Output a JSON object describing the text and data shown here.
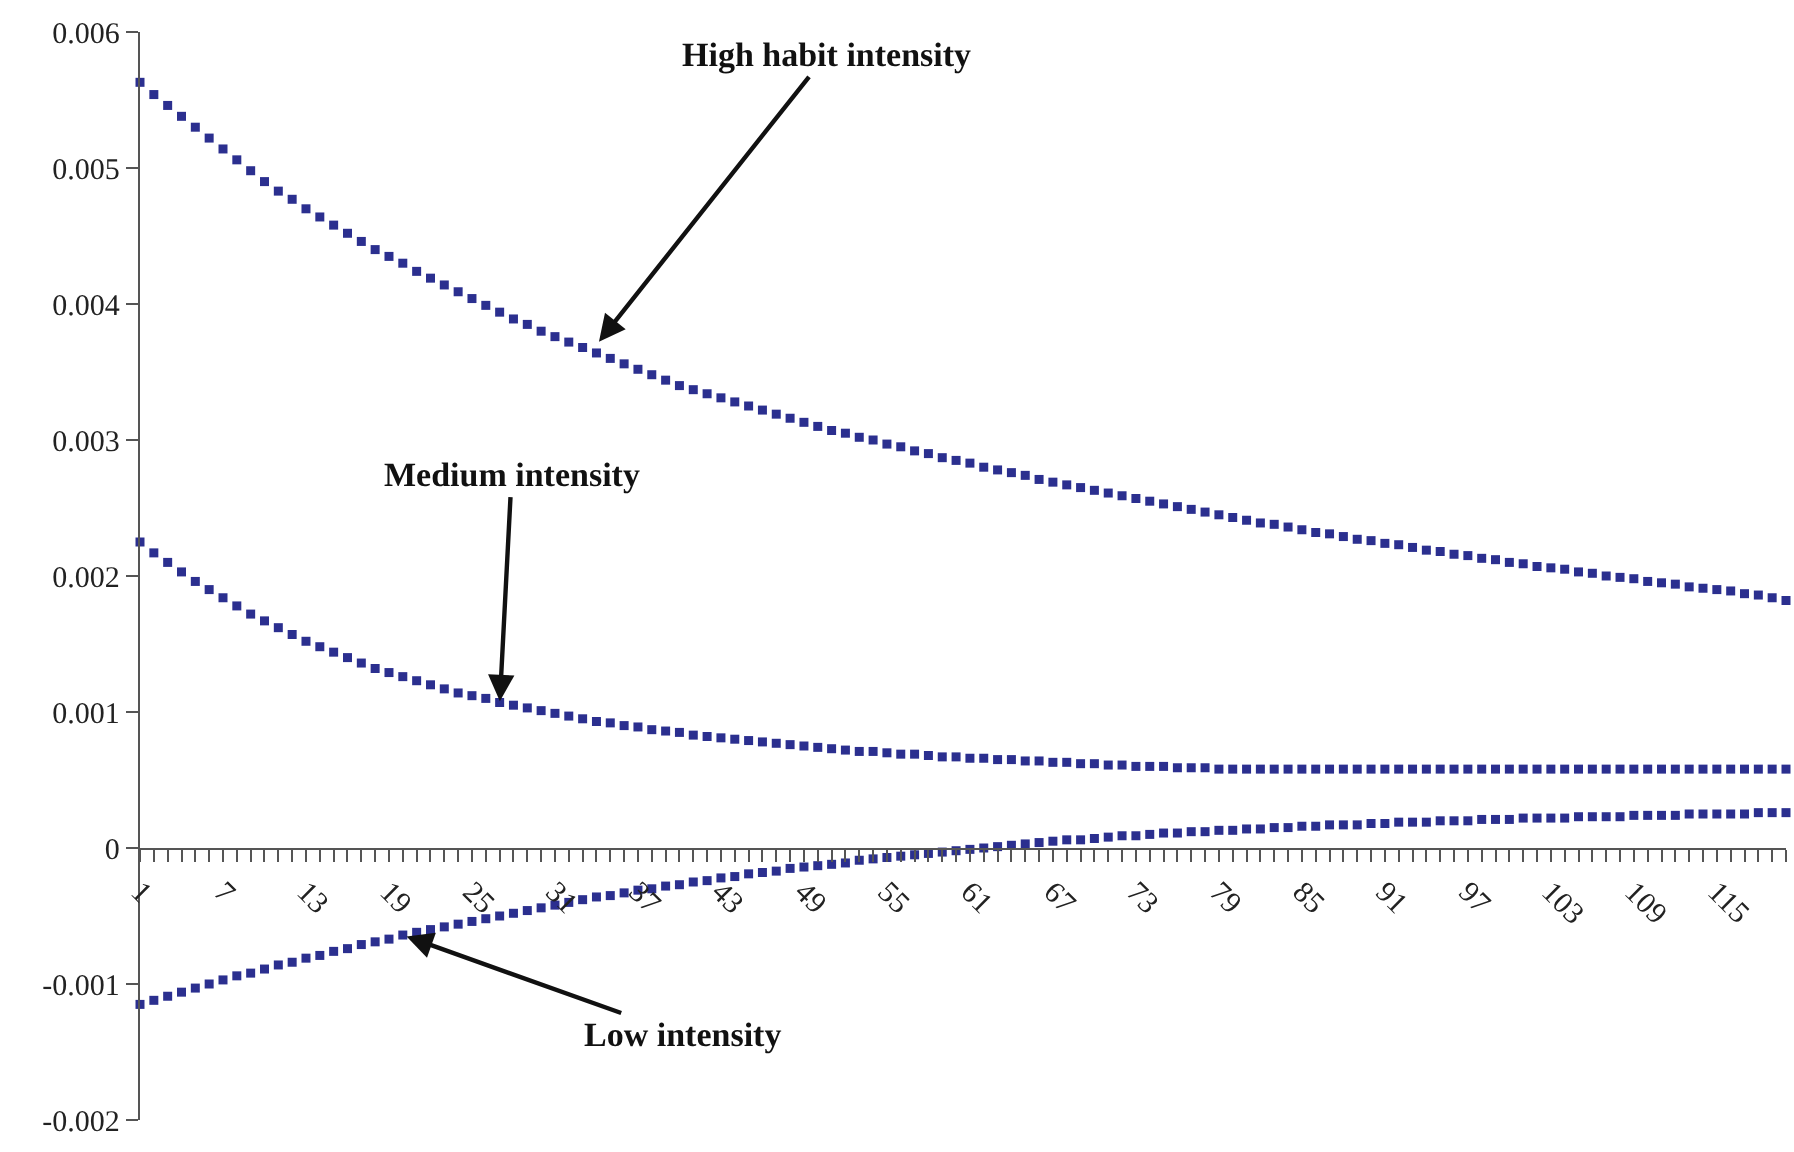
{
  "chart_data": {
    "type": "scatter",
    "marker": "square",
    "x": [
      1,
      2,
      3,
      4,
      5,
      6,
      7,
      8,
      9,
      10,
      11,
      12,
      13,
      14,
      15,
      16,
      17,
      18,
      19,
      20,
      21,
      22,
      23,
      24,
      25,
      26,
      27,
      28,
      29,
      30,
      31,
      32,
      33,
      34,
      35,
      36,
      37,
      38,
      39,
      40,
      41,
      42,
      43,
      44,
      45,
      46,
      47,
      48,
      49,
      50,
      51,
      52,
      53,
      54,
      55,
      56,
      57,
      58,
      59,
      60,
      61,
      62,
      63,
      64,
      65,
      66,
      67,
      68,
      69,
      70,
      71,
      72,
      73,
      74,
      75,
      76,
      77,
      78,
      79,
      80,
      81,
      82,
      83,
      84,
      85,
      86,
      87,
      88,
      89,
      90,
      91,
      92,
      93,
      94,
      95,
      96,
      97,
      98,
      99,
      100,
      101,
      102,
      103,
      104,
      105,
      106,
      107,
      108,
      109,
      110,
      111,
      112,
      113,
      114,
      115,
      116,
      117,
      118,
      119,
      120
    ],
    "xlim": [
      1,
      120
    ],
    "xticks": [
      1,
      7,
      13,
      19,
      25,
      31,
      37,
      43,
      49,
      55,
      61,
      67,
      73,
      79,
      85,
      91,
      97,
      103,
      109,
      115
    ],
    "ylim": [
      -0.002,
      0.006
    ],
    "yticks": [
      -0.002,
      -0.001,
      0,
      0.001,
      0.002,
      0.003,
      0.004,
      0.005,
      0.006
    ],
    "series": [
      {
        "color": "#2b2f8f",
        "values": [
          0.00563,
          0.00554,
          0.00546,
          0.00538,
          0.0053,
          0.00522,
          0.00514,
          0.00506,
          0.00498,
          0.0049,
          0.00483,
          0.00477,
          0.0047,
          0.00464,
          0.00458,
          0.00452,
          0.00446,
          0.0044,
          0.00435,
          0.0043,
          0.00424,
          0.00419,
          0.00414,
          0.00409,
          0.00404,
          0.00399,
          0.00394,
          0.00389,
          0.00385,
          0.0038,
          0.00376,
          0.00372,
          0.00368,
          0.00364,
          0.0036,
          0.00356,
          0.00352,
          0.00348,
          0.00344,
          0.0034,
          0.00337,
          0.00334,
          0.00331,
          0.00328,
          0.00325,
          0.00322,
          0.00319,
          0.00316,
          0.00313,
          0.0031,
          0.00307,
          0.00305,
          0.00302,
          0.003,
          0.00297,
          0.00295,
          0.00292,
          0.0029,
          0.00287,
          0.00285,
          0.00283,
          0.0028,
          0.00278,
          0.00276,
          0.00274,
          0.00271,
          0.00269,
          0.00267,
          0.00265,
          0.00263,
          0.00261,
          0.00259,
          0.00257,
          0.00255,
          0.00253,
          0.00251,
          0.00249,
          0.00247,
          0.00245,
          0.00243,
          0.00241,
          0.00239,
          0.00238,
          0.00236,
          0.00234,
          0.00232,
          0.00231,
          0.00229,
          0.00227,
          0.00226,
          0.00224,
          0.00223,
          0.00221,
          0.00219,
          0.00218,
          0.00216,
          0.00215,
          0.00213,
          0.00212,
          0.0021,
          0.00209,
          0.00207,
          0.00206,
          0.00205,
          0.00203,
          0.00202,
          0.002,
          0.00199,
          0.00198,
          0.00196,
          0.00195,
          0.00194,
          0.00192,
          0.00191,
          0.0019,
          0.00189,
          0.00187,
          0.00186,
          0.00184,
          0.00182
        ]
      },
      {
        "color": "#2b2f8f",
        "values": [
          0.00225,
          0.00217,
          0.0021,
          0.00203,
          0.00196,
          0.0019,
          0.00184,
          0.00178,
          0.00172,
          0.00167,
          0.00162,
          0.00157,
          0.00152,
          0.00148,
          0.00144,
          0.0014,
          0.00136,
          0.00132,
          0.00129,
          0.00126,
          0.00123,
          0.0012,
          0.00117,
          0.00114,
          0.00112,
          0.0011,
          0.00107,
          0.00105,
          0.00103,
          0.00101,
          0.00099,
          0.00097,
          0.00095,
          0.00093,
          0.00092,
          0.0009,
          0.00089,
          0.00087,
          0.00086,
          0.00085,
          0.00083,
          0.00082,
          0.00081,
          0.0008,
          0.00079,
          0.00078,
          0.00077,
          0.00076,
          0.00075,
          0.00074,
          0.00073,
          0.00072,
          0.00071,
          0.00071,
          0.0007,
          0.00069,
          0.00069,
          0.00068,
          0.00067,
          0.00067,
          0.00066,
          0.00066,
          0.00065,
          0.00065,
          0.00064,
          0.00064,
          0.00063,
          0.00063,
          0.00062,
          0.00062,
          0.00061,
          0.00061,
          0.0006,
          0.0006,
          0.0006,
          0.00059,
          0.00059,
          0.00059,
          0.00058,
          0.00058,
          0.00058,
          0.00058,
          0.00058,
          0.00058,
          0.00058,
          0.00058,
          0.00058,
          0.00058,
          0.00058,
          0.00058,
          0.00058,
          0.00058,
          0.00058,
          0.00058,
          0.00058,
          0.00058,
          0.00058,
          0.00058,
          0.00058,
          0.00058,
          0.00058,
          0.00058,
          0.00058,
          0.00058,
          0.00058,
          0.00058,
          0.00058,
          0.00058,
          0.00058,
          0.00058,
          0.00058,
          0.00058,
          0.00058,
          0.00058,
          0.00058,
          0.00058,
          0.00058,
          0.00058,
          0.00058,
          0.00058
        ]
      },
      {
        "color": "#2b2f8f",
        "values": [
          -0.00115,
          -0.00112,
          -0.00109,
          -0.00106,
          -0.00103,
          -0.001,
          -0.00097,
          -0.00094,
          -0.00092,
          -0.00089,
          -0.00086,
          -0.00084,
          -0.00081,
          -0.00079,
          -0.00076,
          -0.00074,
          -0.00071,
          -0.00069,
          -0.00067,
          -0.00064,
          -0.00062,
          -0.0006,
          -0.00058,
          -0.00056,
          -0.00054,
          -0.00052,
          -0.0005,
          -0.00048,
          -0.00046,
          -0.00044,
          -0.00042,
          -0.0004,
          -0.00038,
          -0.00036,
          -0.00035,
          -0.00033,
          -0.00031,
          -0.0003,
          -0.00028,
          -0.00027,
          -0.00025,
          -0.00024,
          -0.00022,
          -0.00021,
          -0.00019,
          -0.00018,
          -0.00017,
          -0.00015,
          -0.00014,
          -0.00013,
          -0.00012,
          -0.00011,
          -9e-05,
          -8e-05,
          -7e-05,
          -6e-05,
          -5e-05,
          -4e-05,
          -3e-05,
          -2e-05,
          -1e-05,
          0.0,
          1e-05,
          2e-05,
          3e-05,
          4e-05,
          5e-05,
          6e-05,
          6e-05,
          7e-05,
          8e-05,
          9e-05,
          9e-05,
          0.0001,
          0.00011,
          0.00011,
          0.00012,
          0.00012,
          0.00013,
          0.00013,
          0.00014,
          0.00014,
          0.00015,
          0.00015,
          0.00016,
          0.00016,
          0.00017,
          0.00017,
          0.00017,
          0.00018,
          0.00018,
          0.00019,
          0.00019,
          0.00019,
          0.0002,
          0.0002,
          0.0002,
          0.00021,
          0.00021,
          0.00021,
          0.00022,
          0.00022,
          0.00022,
          0.00022,
          0.00023,
          0.00023,
          0.00023,
          0.00023,
          0.00024,
          0.00024,
          0.00024,
          0.00024,
          0.00025,
          0.00025,
          0.00025,
          0.00025,
          0.00025,
          0.00026,
          0.00026,
          0.00026
        ]
      }
    ],
    "annotations": [
      {
        "text": "High habit intensity",
        "x": 34,
        "y": 0.0037
      },
      {
        "text": "Medium intensity",
        "x": 27,
        "y": 0.00105
      },
      {
        "text": "Low intensity",
        "x": 20,
        "y": -0.00064
      }
    ]
  }
}
